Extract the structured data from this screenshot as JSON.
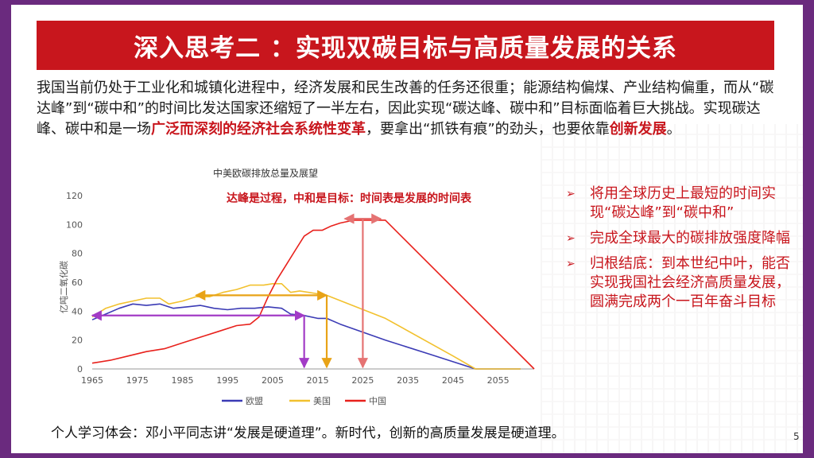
{
  "slide": {
    "title": "深入思考二 ：实现双碳目标与高质量发展的关系",
    "para_1": "我国当前仍处于工业化和城镇化进程中，经济发展和民生改善的任务还很重；能源结构偏煤、产业结构偏重，而从“碳达峰”到“碳中和”的时间比发达国家还缩短了一半左右，因此实现“碳达峰、碳中和”目标面临着巨大挑战。实现碳达峰、碳中和是一场",
    "para_hl_1": "广泛而深刻的经济社会系统性变革",
    "para_2": "，要拿出“抓铁有痕”的劲头，也要依靠",
    "para_hl_2": "创新发展",
    "para_3": "。",
    "bullet_1": "将用全球历史上最短的时间实现“碳达峰”到“碳中和”",
    "bullet_2": "完成全球最大的碳排放强度降幅",
    "bullet_3": "归根结底：到本世纪中叶，能否实现我国社会经济高质量发展，圆满完成两个一百年奋斗目标",
    "footer": "个人学习体会：邓小平同志讲“发展是硬道理”。新时代，创新的高质量发展是硬道理。",
    "page_number": "5"
  },
  "chart_data": {
    "type": "line",
    "title": "中美欧碳排放总量及展望",
    "annotation": "达峰是过程，中和是目标：时间表是发展的时间表",
    "ylabel": "亿吨二氧化碳",
    "xlabel": "",
    "xlim": [
      1965,
      2063
    ],
    "ylim": [
      0,
      120
    ],
    "x_ticks": [
      1965,
      1975,
      1985,
      1995,
      2005,
      2015,
      2025,
      2035,
      2045,
      2055
    ],
    "y_ticks": [
      0,
      20,
      40,
      60,
      80,
      100,
      120
    ],
    "grid": false,
    "legend_position": "bottom",
    "colors": {
      "eu": "#3b3bb5",
      "us": "#f2c12e",
      "china": "#e8211c",
      "arrow_purple": "#a23bc6",
      "arrow_gold": "#e8a317",
      "arrow_red": "#e57373"
    },
    "series": [
      {
        "name": "欧盟",
        "color": "#3b3bb5",
        "points": [
          [
            1965,
            34
          ],
          [
            1968,
            38
          ],
          [
            1971,
            42
          ],
          [
            1974,
            45
          ],
          [
            1977,
            44
          ],
          [
            1980,
            45
          ],
          [
            1983,
            42
          ],
          [
            1986,
            43
          ],
          [
            1989,
            44
          ],
          [
            1992,
            42
          ],
          [
            1995,
            41
          ],
          [
            1998,
            42
          ],
          [
            2001,
            42
          ],
          [
            2004,
            43
          ],
          [
            2007,
            42
          ],
          [
            2009,
            38
          ],
          [
            2012,
            37
          ],
          [
            2015,
            35
          ],
          [
            2017,
            35
          ],
          [
            2020,
            31
          ],
          [
            2030,
            20
          ],
          [
            2040,
            10
          ],
          [
            2050,
            0
          ],
          [
            2060,
            0
          ]
        ]
      },
      {
        "name": "美国",
        "color": "#f2c12e",
        "points": [
          [
            1965,
            36
          ],
          [
            1968,
            42
          ],
          [
            1971,
            45
          ],
          [
            1974,
            47
          ],
          [
            1977,
            49
          ],
          [
            1980,
            49
          ],
          [
            1982,
            45
          ],
          [
            1985,
            47
          ],
          [
            1988,
            50
          ],
          [
            1991,
            50
          ],
          [
            1994,
            53
          ],
          [
            1997,
            55
          ],
          [
            2000,
            58
          ],
          [
            2003,
            58
          ],
          [
            2005,
            59
          ],
          [
            2007,
            59
          ],
          [
            2009,
            53
          ],
          [
            2011,
            54
          ],
          [
            2013,
            53
          ],
          [
            2015,
            52
          ],
          [
            2017,
            51
          ],
          [
            2030,
            35
          ],
          [
            2045,
            9
          ],
          [
            2050,
            0
          ],
          [
            2060,
            0
          ]
        ]
      },
      {
        "name": "中国",
        "color": "#e8211c",
        "points": [
          [
            1965,
            4
          ],
          [
            1969,
            6
          ],
          [
            1973,
            9
          ],
          [
            1977,
            12
          ],
          [
            1981,
            14
          ],
          [
            1985,
            18
          ],
          [
            1989,
            22
          ],
          [
            1993,
            26
          ],
          [
            1997,
            30
          ],
          [
            2000,
            31
          ],
          [
            2002,
            36
          ],
          [
            2004,
            50
          ],
          [
            2006,
            62
          ],
          [
            2008,
            72
          ],
          [
            2010,
            82
          ],
          [
            2012,
            92
          ],
          [
            2014,
            96
          ],
          [
            2016,
            96
          ],
          [
            2018,
            99
          ],
          [
            2020,
            101
          ],
          [
            2023,
            103
          ],
          [
            2025,
            103
          ],
          [
            2030,
            103
          ],
          [
            2063,
            0
          ]
        ]
      }
    ],
    "reference_lines": [
      {
        "color": "#a23bc6",
        "from": [
          1965,
          37
        ],
        "to": [
          2012,
          37
        ],
        "drop_x": 2012
      },
      {
        "color": "#e8a317",
        "from": [
          1988,
          51
        ],
        "to": [
          2017,
          51
        ],
        "drop_x": 2017
      },
      {
        "color": "#e57373",
        "from": [
          2021,
          104
        ],
        "to": [
          2029,
          104
        ],
        "drop_x": 2025
      }
    ]
  }
}
